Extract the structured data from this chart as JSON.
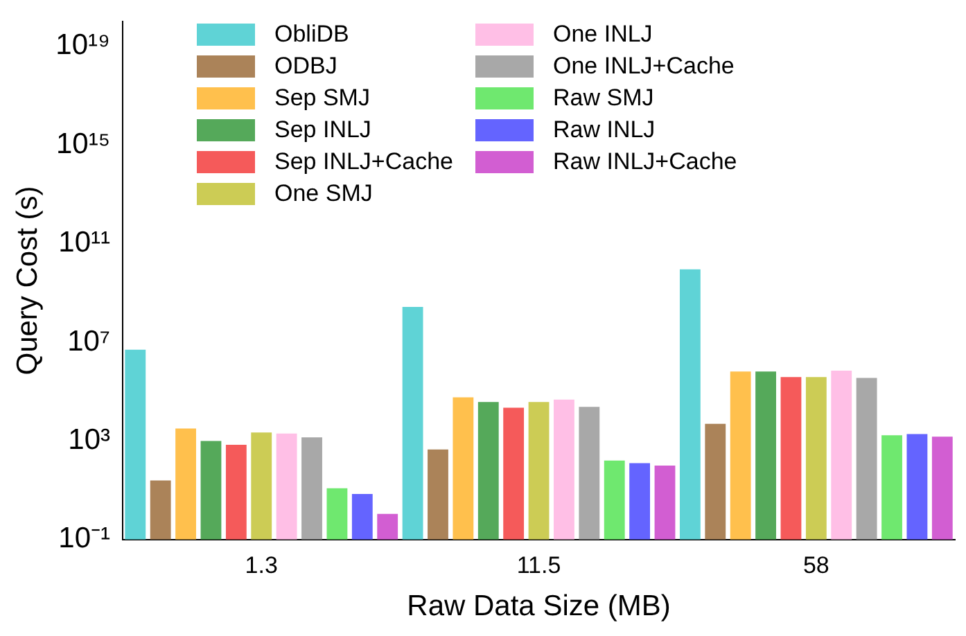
{
  "chart_data": {
    "type": "bar",
    "xlabel": "Raw Data Size (MB)",
    "ylabel": "Query Cost (s)",
    "categories": [
      "1.3",
      "11.5",
      "58"
    ],
    "series": [
      {
        "name": "ObliDB",
        "color": "#5fd3d6",
        "values": [
          5000000,
          270000000,
          9000000000
        ]
      },
      {
        "name": "ODBJ",
        "color": "#ab8359",
        "values": [
          25,
          450,
          4900
        ]
      },
      {
        "name": "Sep SMJ",
        "color": "#ffc04d",
        "values": [
          3200,
          58000,
          650000
        ]
      },
      {
        "name": "Sep INLJ",
        "color": "#55a95a",
        "values": [
          1000,
          38000,
          650000
        ]
      },
      {
        "name": "Sep INLJ+Cache",
        "color": "#f55a5a",
        "values": [
          700,
          22000,
          390000
        ]
      },
      {
        "name": "One SMJ",
        "color": "#cccc55",
        "values": [
          2200,
          38000,
          390000
        ]
      },
      {
        "name": "One INLJ",
        "color": "#ffbfe6",
        "values": [
          2000,
          47000,
          700000
        ]
      },
      {
        "name": "One INLJ+Cache",
        "color": "#a8a8a8",
        "values": [
          1400,
          24000,
          360000
        ]
      },
      {
        "name": "Raw SMJ",
        "color": "#6fe86f",
        "values": [
          12,
          160,
          1700
        ]
      },
      {
        "name": "Raw INLJ",
        "color": "#6464ff",
        "values": [
          7,
          125,
          1900
        ]
      },
      {
        "name": "Raw INLJ+Cache",
        "color": "#d25ed2",
        "values": [
          1.1,
          100,
          1500
        ]
      }
    ],
    "log": "y",
    "ylim": [
      0.1,
      1e+20
    ],
    "yticks": [
      {
        "value": 0.1,
        "label": "10⁻¹"
      },
      {
        "value": 1000,
        "label": "10³"
      },
      {
        "value": 10000000,
        "label": "10⁷"
      },
      {
        "value": 100000000000,
        "label": "10¹¹"
      },
      {
        "value": 1000000000000000,
        "label": "10¹⁵"
      },
      {
        "value": 1e+19,
        "label": "10¹⁹"
      }
    ],
    "grid": false,
    "legend": "top left"
  }
}
